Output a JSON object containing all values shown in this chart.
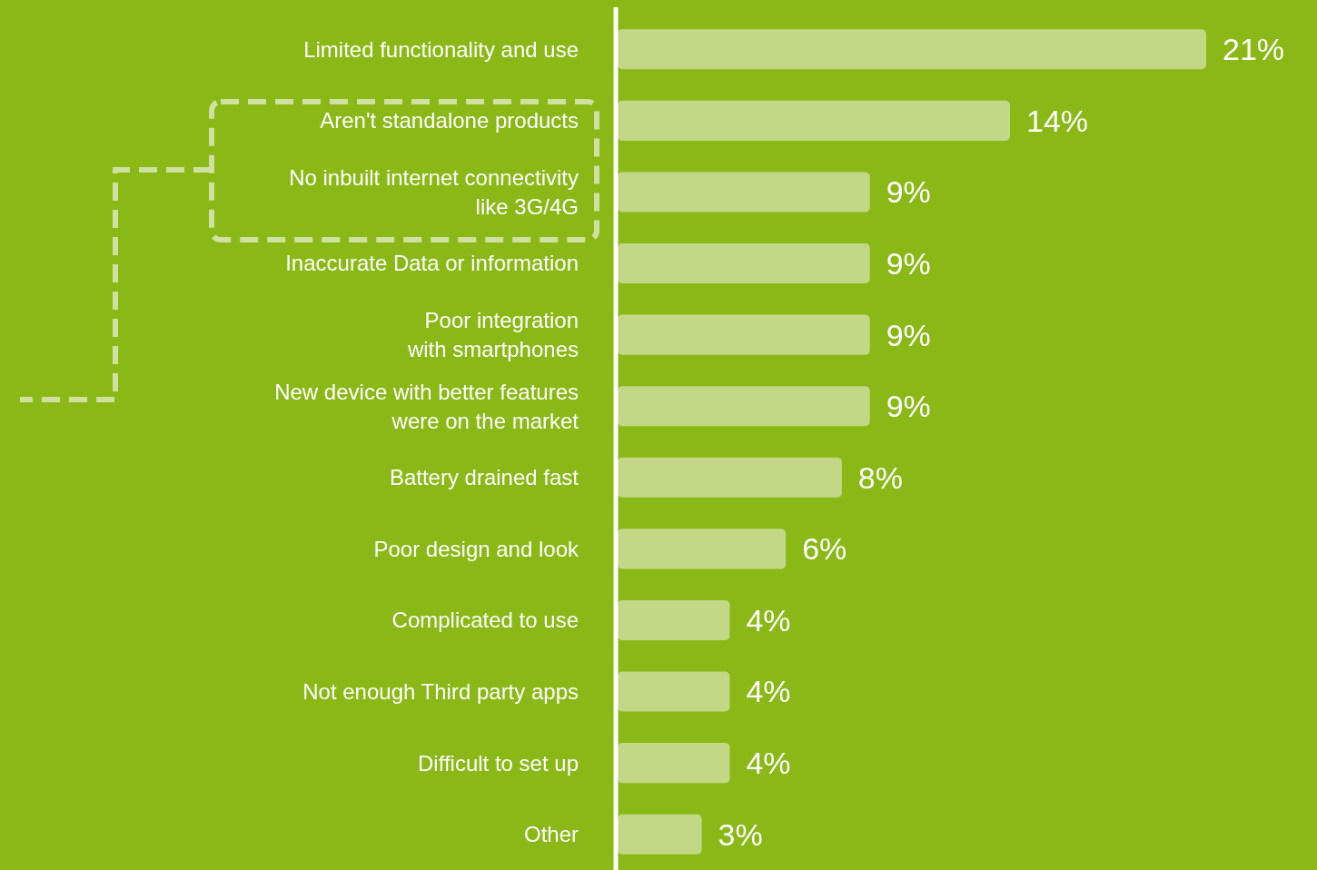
{
  "chart_data": {
    "type": "bar",
    "orientation": "horizontal",
    "color": "#c2d886",
    "value_labels": [
      "21%",
      "14%",
      "9%",
      "9%",
      "9%",
      "9%",
      "8%",
      "6%",
      "4%",
      "4%",
      "4%",
      "3%"
    ],
    "categories": [
      "Limited functionality and use",
      "Aren't standalone products",
      "No inbuilt internet connectivity\nlike 3G/4G",
      "Inaccurate Data or information",
      "Poor integration\nwith smartphones",
      "New device with better features\nwere on the market",
      "Battery drained fast",
      "Poor design and look",
      "Complicated to use",
      "Not enough Third party apps",
      "Difficult to set up",
      "Other"
    ],
    "values": [
      21,
      14,
      9,
      9,
      9,
      9,
      8,
      6,
      4,
      4,
      4,
      3
    ]
  }
}
